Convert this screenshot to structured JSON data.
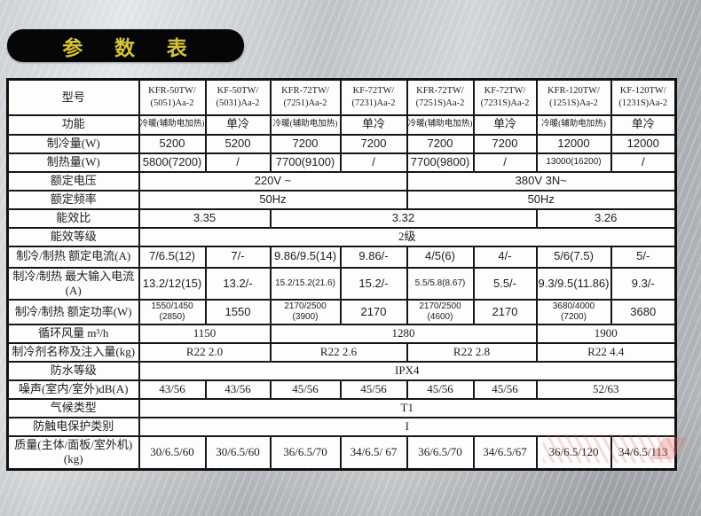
{
  "title": "参 数 表",
  "colors": {
    "title_bg": "#060606",
    "title_text": "#d6c33a",
    "table_border": "#161616",
    "cell_bg": "#fdfdfd",
    "text": "#1d1d1d",
    "background_silver": "#c7cbcf",
    "watermark_red": "#de6060"
  },
  "table": {
    "rows": [
      {
        "label": "型号",
        "cls": "models",
        "cells": [
          {
            "t": "KFR-50TW/\n(5051)Aa-2"
          },
          {
            "t": "KF-50TW/\n(5031)Aa-2"
          },
          {
            "t": "KFR-72TW/\n(7251)Aa-2"
          },
          {
            "t": "KF-72TW/\n(7231)Aa-2"
          },
          {
            "t": "KFR-72TW/\n(7251S)Aa-2"
          },
          {
            "t": "KF-72TW/\n(7231S)Aa-2"
          },
          {
            "t": "KFR-120TW/\n(1251S)Aa-2"
          },
          {
            "t": "KF-120TW/\n(1231S)Aa-2"
          }
        ]
      },
      {
        "label": "功能",
        "cls": "func",
        "cells": [
          {
            "t": "冷暖(辅助电加热)",
            "sm": true
          },
          {
            "t": "单冷"
          },
          {
            "t": "冷暖(辅助电加热)",
            "sm": true
          },
          {
            "t": "单冷"
          },
          {
            "t": "冷暖(辅助电加热)",
            "sm": true
          },
          {
            "t": "单冷"
          },
          {
            "t": "冷暖(辅助电加热)",
            "sm": true
          },
          {
            "t": "单冷"
          }
        ]
      },
      {
        "label": "制冷量(W)",
        "cls": "sans",
        "cells": [
          {
            "t": "5200"
          },
          {
            "t": "5200"
          },
          {
            "t": "7200"
          },
          {
            "t": "7200"
          },
          {
            "t": "7200"
          },
          {
            "t": "7200"
          },
          {
            "t": "12000"
          },
          {
            "t": "12000"
          }
        ]
      },
      {
        "label": "制热量(W)",
        "cls": "sans",
        "cells": [
          {
            "t": "5800(7200)"
          },
          {
            "t": "/"
          },
          {
            "t": "7700(9100)"
          },
          {
            "t": "/"
          },
          {
            "t": "7700(9800)"
          },
          {
            "t": "/"
          },
          {
            "t": "13000(16200)",
            "sm": true
          },
          {
            "t": "/"
          }
        ]
      },
      {
        "label": "额定电压",
        "cls": "sans",
        "cells": [
          {
            "t": "220V ~",
            "s": 4
          },
          {
            "t": "380V 3N~",
            "s": 4
          }
        ]
      },
      {
        "label": "额定频率",
        "cls": "sans",
        "cells": [
          {
            "t": "50Hz",
            "s": 4
          },
          {
            "t": "50Hz",
            "s": 4
          }
        ]
      },
      {
        "label": "能效比",
        "cls": "sans",
        "cells": [
          {
            "t": "3.35",
            "s": 2
          },
          {
            "t": "3.32",
            "s": 4
          },
          {
            "t": "3.26",
            "s": 2
          }
        ]
      },
      {
        "label": "能效等级",
        "cells": [
          {
            "t": "2级",
            "s": 8
          }
        ]
      },
      {
        "label": "制冷/制热  额定电流(A)",
        "cls": "sans",
        "cells": [
          {
            "t": "7/6.5(12)"
          },
          {
            "t": "7/-"
          },
          {
            "t": "9.86/9.5(14)"
          },
          {
            "t": "9.86/-"
          },
          {
            "t": "4/5(6)"
          },
          {
            "t": "4/-"
          },
          {
            "t": "5/6(7.5)"
          },
          {
            "t": "5/-"
          }
        ]
      },
      {
        "label": "制冷/制热  最大输入电流(A)",
        "cls": "sans",
        "cells": [
          {
            "t": "13.2/12(15)"
          },
          {
            "t": "13.2/-"
          },
          {
            "t": "15.2/15.2(21.6)",
            "sm": true
          },
          {
            "t": "15.2/-"
          },
          {
            "t": "5.5/5.8(8.67)",
            "sm": true
          },
          {
            "t": "5.5/-"
          },
          {
            "t": "9.3/9.5(11.86)"
          },
          {
            "t": "9.3/-"
          }
        ]
      },
      {
        "label": "制冷/制热  额定功率(W)",
        "cls": "sans",
        "cells": [
          {
            "t": "1550/1450\n(2850)",
            "sm": true
          },
          {
            "t": "1550"
          },
          {
            "t": "2170/2500\n(3900)",
            "sm": true
          },
          {
            "t": "2170"
          },
          {
            "t": "2170/2500\n(4600)",
            "sm": true
          },
          {
            "t": "2170"
          },
          {
            "t": "3680/4000\n(7200)",
            "sm": true
          },
          {
            "t": "3680"
          }
        ]
      },
      {
        "label": "循环风量 m³/h",
        "cells": [
          {
            "t": "1150",
            "s": 2
          },
          {
            "t": "1280",
            "s": 4
          },
          {
            "t": "1900",
            "s": 2
          }
        ]
      },
      {
        "label": "制冷剂名称及注入量(kg)",
        "cells": [
          {
            "t": "R22 2.0",
            "s": 2
          },
          {
            "t": "R22 2.6",
            "s": 2
          },
          {
            "t": "R22 2.8",
            "s": 2
          },
          {
            "t": "R22 4.4",
            "s": 2
          }
        ]
      },
      {
        "label": "防水等级",
        "cells": [
          {
            "t": "IPX4",
            "s": 8
          }
        ]
      },
      {
        "label": "噪声(室内/室外)dB(A)",
        "cells": [
          {
            "t": "43/56"
          },
          {
            "t": "43/56"
          },
          {
            "t": "45/56"
          },
          {
            "t": "45/56"
          },
          {
            "t": "45/56"
          },
          {
            "t": "45/56"
          },
          {
            "t": "52/63",
            "s": 2
          }
        ]
      },
      {
        "label": "气候类型",
        "cells": [
          {
            "t": "T1",
            "s": 8
          }
        ]
      },
      {
        "label": "防触电保护类别",
        "cells": [
          {
            "t": "I",
            "s": 8
          }
        ]
      },
      {
        "label": "质量(主体/面板/室外机)\n(kg)",
        "cells": [
          {
            "t": "30/6.5/60"
          },
          {
            "t": "30/6.5/60"
          },
          {
            "t": "36/6.5/70"
          },
          {
            "t": "34/6.5/ 67"
          },
          {
            "t": "36/6.5/70"
          },
          {
            "t": "34/6.5/67"
          },
          {
            "t": "36/6.5/120"
          },
          {
            "t": "34/6.5/113"
          }
        ]
      }
    ]
  }
}
